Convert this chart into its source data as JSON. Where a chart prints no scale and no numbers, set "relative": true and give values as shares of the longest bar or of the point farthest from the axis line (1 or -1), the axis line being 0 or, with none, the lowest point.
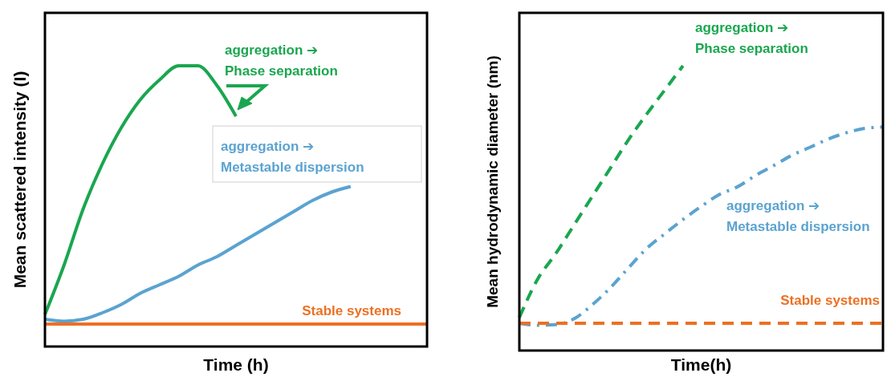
{
  "chart_data": [
    {
      "type": "line",
      "xlabel": "Time (h)",
      "ylabel": "Mean scattered intensity (I)",
      "relative": true,
      "categories": [
        null,
        null,
        null,
        null,
        null,
        null,
        null,
        null,
        null,
        null,
        null,
        null,
        null,
        null,
        null,
        null,
        null,
        null,
        null,
        null,
        null
      ],
      "series": [
        {
          "name": "aggregation ➔\nPhase separation",
          "color": "#1aa64f",
          "line_style": "solid",
          "values": [
            0.114,
            0.29,
            0.49,
            0.65,
            0.78,
            0.88,
            0.95,
            1.0,
            1.0,
            0.93,
            0.82,
            null,
            null,
            null,
            null,
            null,
            null,
            null,
            null,
            null,
            null
          ]
        },
        {
          "name": "aggregation ➔\nMetastable dispersion",
          "color": "#5ba3d0",
          "line_style": "solid",
          "values": [
            0.097,
            0.09,
            0.097,
            0.12,
            0.15,
            0.19,
            0.22,
            0.25,
            0.29,
            0.32,
            0.36,
            0.4,
            0.44,
            0.48,
            0.52,
            0.55,
            0.57,
            null,
            null,
            null,
            null
          ]
        },
        {
          "name": "Stable systems",
          "color": "#ec7023",
          "line_style": "solid",
          "values": [
            0.08,
            0.08,
            0.08,
            0.08,
            0.08,
            0.08,
            0.08,
            0.08,
            0.08,
            0.08,
            0.08,
            0.08,
            0.08,
            0.08,
            0.08,
            0.08,
            0.08,
            0.08,
            0.08,
            0.08,
            0.08
          ]
        }
      ]
    },
    {
      "type": "line",
      "xlabel": "Time(h)",
      "ylabel": "Mean hydrodynamic diameter (nm)",
      "relative": true,
      "categories": [
        null,
        null,
        null,
        null,
        null,
        null,
        null,
        null,
        null,
        null,
        null,
        null,
        null,
        null,
        null,
        null,
        null,
        null,
        null,
        null,
        null
      ],
      "series": [
        {
          "name": "aggregation ➔\nPhase separation",
          "color": "#1aa64f",
          "line_style": "dashed",
          "values": [
            0.116,
            0.25,
            0.34,
            0.44,
            0.54,
            0.64,
            0.74,
            0.83,
            0.915,
            1.0,
            null,
            null,
            null,
            null,
            null,
            null,
            null,
            null,
            null,
            null,
            null
          ]
        },
        {
          "name": "aggregation ➔\nMetastable dispersion",
          "color": "#5ba3d0",
          "line_style": "dashdot",
          "values": [
            0.096,
            0.089,
            0.091,
            0.111,
            0.16,
            0.22,
            0.29,
            0.358,
            0.41,
            0.46,
            0.506,
            0.548,
            0.575,
            0.615,
            0.65,
            0.686,
            0.714,
            0.743,
            0.765,
            0.78,
            0.785
          ]
        },
        {
          "name": "Stable systems",
          "color": "#ec7023",
          "line_style": "dashed",
          "values": [
            0.096,
            0.096,
            0.096,
            0.096,
            0.096,
            0.096,
            0.096,
            0.096,
            0.096,
            0.096,
            0.096,
            0.096,
            0.096,
            0.096,
            0.096,
            0.096,
            0.096,
            0.096,
            0.096,
            0.096,
            0.096
          ]
        }
      ]
    }
  ]
}
